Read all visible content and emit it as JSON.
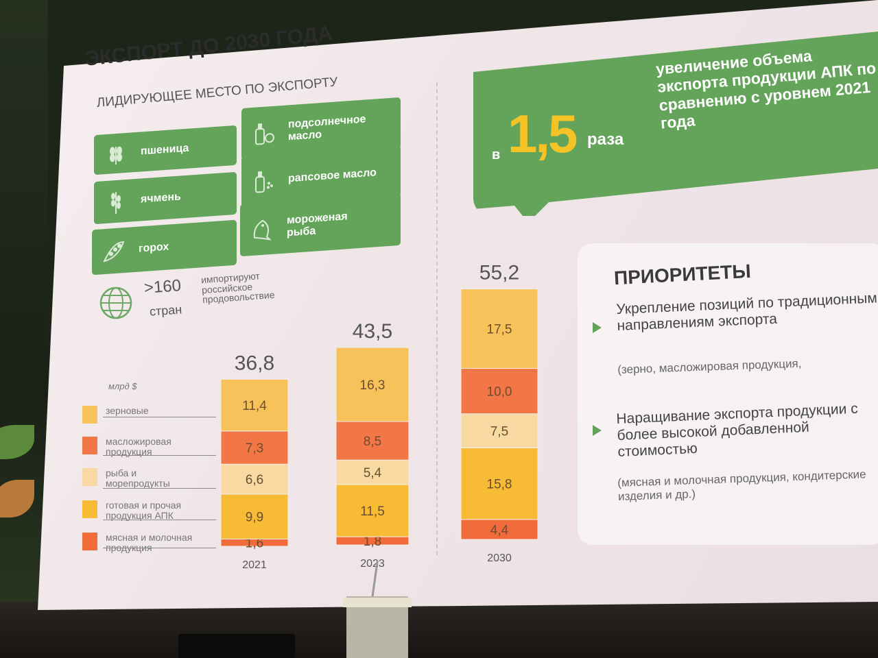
{
  "slide": {
    "title": "ЭКСПОРТ ДО 2030 ГОДА",
    "subtitle": "ЛИДИРУЮЩЕЕ МЕСТО ПО ЭКСПОРТУ",
    "products": [
      {
        "label": "пшеница",
        "icon": "wheat-icon"
      },
      {
        "label": "подсолнечное масло",
        "icon": "oil-bottle-icon"
      },
      {
        "label": "ячмень",
        "icon": "barley-icon"
      },
      {
        "label": "рапсовое масло",
        "icon": "rapeseed-oil-icon"
      },
      {
        "label": "горох",
        "icon": "pea-pod-icon"
      },
      {
        "label": "мороженая рыба",
        "icon": "fish-icon"
      }
    ],
    "countries": {
      "count": ">160",
      "unit": "стран",
      "text": "импортируют российское продовольствие"
    },
    "callout": {
      "prefix": "в",
      "number": "1,5",
      "suffix": "раза",
      "text": "увеличение объема экспорта продукции АПК по сравнению с уровнем 2021 года"
    },
    "priorities": {
      "title": "ПРИОРИТЕТЫ",
      "items": [
        {
          "main": "Укрепление позиций по традиционным направлениям экспорта",
          "sub": "(зерно, масложировая продукция,"
        },
        {
          "main": "Наращивание экспорта продукции с более высокой добавленной стоимостью",
          "sub": "(мясная и молочная продукция, кондитерские изделия и др.)"
        }
      ]
    },
    "colors": {
      "green": "#63a45a",
      "yellow": "#f5c325"
    }
  },
  "chart_data": {
    "type": "bar",
    "stacked": true,
    "unit": "млрд $",
    "categories": [
      "2021",
      "2023",
      "2030"
    ],
    "totals": [
      36.8,
      43.5,
      55.2
    ],
    "totals_labels": [
      "36,8",
      "43,5",
      "55,2"
    ],
    "series": [
      {
        "name": "мясная и молочная продукция",
        "values": [
          1.6,
          1.8,
          4.4
        ],
        "labels": [
          "1,6",
          "1,8",
          "4,4"
        ],
        "color": "#f26b3a"
      },
      {
        "name": "готовая и прочая продукция АПК",
        "values": [
          9.9,
          11.5,
          15.8
        ],
        "labels": [
          "9,9",
          "11,5",
          "15,8"
        ],
        "color": "#f7bb35"
      },
      {
        "name": "рыба и морепродукты",
        "values": [
          6.6,
          5.4,
          7.5
        ],
        "labels": [
          "6,6",
          "5,4",
          "7,5"
        ],
        "color": "#f8d9a2"
      },
      {
        "name": "масложировая продукция",
        "values": [
          7.3,
          8.5,
          10.0
        ],
        "labels": [
          "7,3",
          "8,5",
          "10,0"
        ],
        "color": "#f37646"
      },
      {
        "name": "зерновые",
        "values": [
          11.4,
          16.3,
          17.5
        ],
        "labels": [
          "11,4",
          "16,3",
          "17,5"
        ],
        "color": "#f8c25a"
      }
    ],
    "legend_order": [
      "зерновые",
      "масложировая продукция",
      "рыба и морепродукты",
      "готовая и прочая продукция АПК",
      "мясная и молочная продукция"
    ]
  }
}
